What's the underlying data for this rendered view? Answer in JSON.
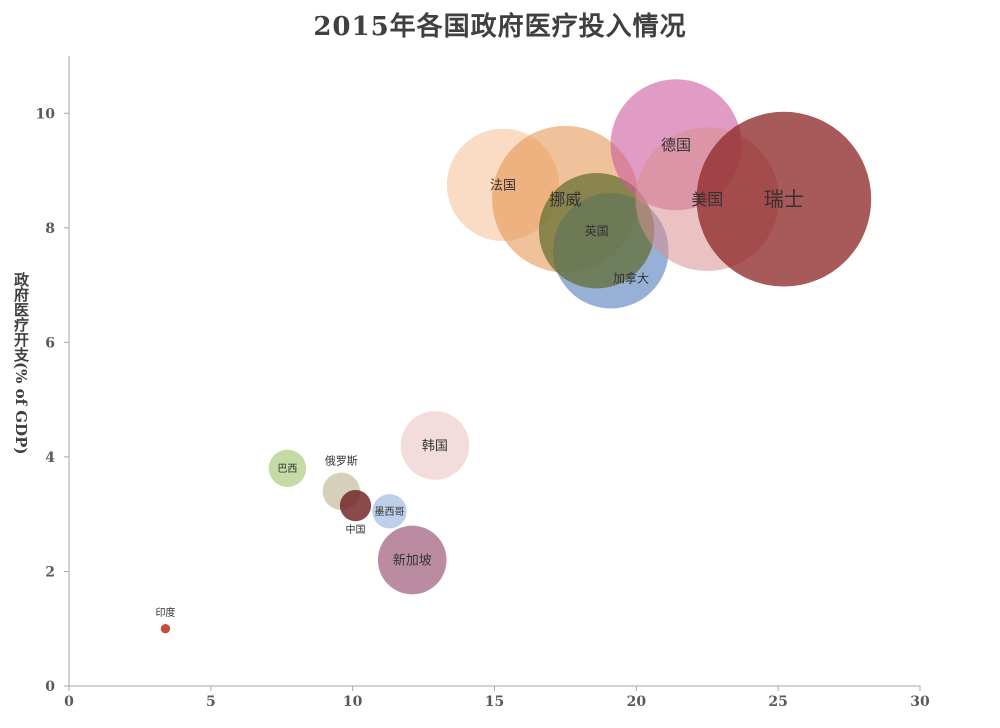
{
  "chart_data": {
    "type": "bubble",
    "title": "2015年各国政府医疗投入情况",
    "xlabel": "",
    "ylabel": "政府医疗开支(% of GDP)",
    "xlim": [
      0,
      30
    ],
    "ylim": [
      0,
      11
    ],
    "x_ticks": [
      0,
      5,
      10,
      15,
      20,
      25,
      30
    ],
    "y_ticks": [
      0,
      2,
      4,
      6,
      8,
      10
    ],
    "grid": false,
    "legend": "none",
    "points": [
      {
        "label": "印度",
        "x": 3.4,
        "y": 1.0,
        "size": 0.3,
        "color": "#c0392b",
        "opacity": 0.9,
        "label_pos": "above",
        "label_size": 10
      },
      {
        "label": "巴西",
        "x": 7.7,
        "y": 3.8,
        "size": 1.2,
        "color": "#9cc36a",
        "opacity": 0.6,
        "label_pos": "center",
        "label_size": 10
      },
      {
        "label": "俄罗斯",
        "x": 9.6,
        "y": 3.4,
        "size": 1.2,
        "color": "#b5a882",
        "opacity": 0.55,
        "label_pos": "above",
        "label_size": 11
      },
      {
        "label": "中国",
        "x": 10.1,
        "y": 3.15,
        "size": 1.0,
        "color": "#6b1d1d",
        "opacity": 0.8,
        "label_pos": "below",
        "label_size": 10
      },
      {
        "label": "墨西哥",
        "x": 11.3,
        "y": 3.05,
        "size": 1.1,
        "color": "#9bb7dd",
        "opacity": 0.65,
        "label_pos": "center",
        "label_size": 10
      },
      {
        "label": "韩国",
        "x": 12.9,
        "y": 4.2,
        "size": 2.2,
        "color": "#e8c0c0",
        "opacity": 0.55,
        "label_pos": "center",
        "label_size": 13
      },
      {
        "label": "新加坡",
        "x": 12.1,
        "y": 2.2,
        "size": 2.2,
        "color": "#8e3f63",
        "opacity": 0.6,
        "label_pos": "center",
        "label_size": 13
      },
      {
        "label": "法国",
        "x": 15.3,
        "y": 8.75,
        "size": 3.6,
        "color": "#f6b98a",
        "opacity": 0.5,
        "label_pos": "center",
        "label_size": 13
      },
      {
        "label": "挪威",
        "x": 17.5,
        "y": 8.5,
        "size": 4.7,
        "color": "#e39048",
        "opacity": 0.55,
        "label_pos": "center",
        "label_size": 16
      },
      {
        "label": "加拿大",
        "x": 19.1,
        "y": 7.6,
        "size": 3.7,
        "color": "#6b8fc3",
        "opacity": 0.7,
        "label_pos": "lower",
        "label_size": 12
      },
      {
        "label": "英国",
        "x": 18.6,
        "y": 7.95,
        "size": 3.7,
        "color": "#5e6b2b",
        "opacity": 0.7,
        "label_pos": "center",
        "label_size": 12
      },
      {
        "label": "德国",
        "x": 21.4,
        "y": 9.45,
        "size": 4.2,
        "color": "#cc5a9c",
        "opacity": 0.6,
        "label_pos": "center",
        "label_size": 15
      },
      {
        "label": "美国",
        "x": 22.5,
        "y": 8.5,
        "size": 4.6,
        "color": "#d99090",
        "opacity": 0.55,
        "label_pos": "center",
        "label_size": 16
      },
      {
        "label": "瑞士",
        "x": 25.2,
        "y": 8.5,
        "size": 5.6,
        "color": "#8f2a2a",
        "opacity": 0.78,
        "label_pos": "center",
        "label_size": 20
      }
    ]
  }
}
